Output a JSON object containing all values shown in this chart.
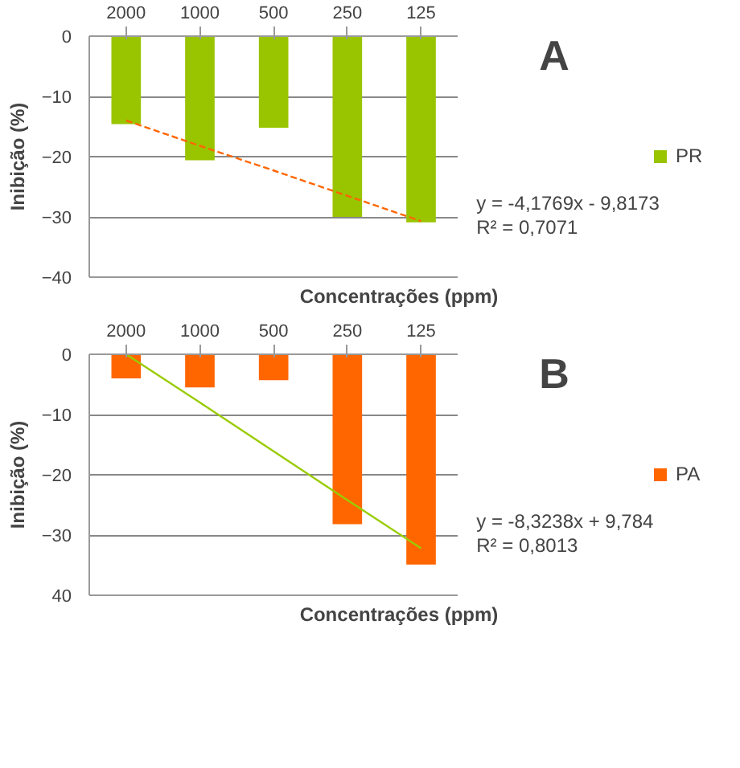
{
  "chart_data": [
    {
      "type": "bar",
      "xlabel": "Concentrações (ppm)",
      "ylabel": "Inibição (%)",
      "categories": [
        "2000",
        "1000",
        "500",
        "250",
        "125"
      ],
      "series": [
        {
          "name": "PR",
          "color": "#99c400",
          "values": [
            -14.6,
            -20.6,
            -15.2,
            -30.0,
            -30.9
          ]
        },
        {
          "type": "line",
          "color": "#ff6600",
          "line_style": "dashed",
          "values": [
            -14.0,
            -18.2,
            -22.3,
            -26.5,
            -30.7
          ]
        }
      ],
      "ylim": [
        -40,
        0
      ],
      "yticks": [
        0,
        -10,
        -20,
        -30,
        -40
      ],
      "grid": "y",
      "legend": "right",
      "annotations": [
        "A",
        "y = -4,1769x - 9,8173",
        "R² = 0,7071"
      ]
    },
    {
      "type": "bar",
      "xlabel": "Concentrações (ppm)",
      "ylabel": "Inibição (%)",
      "categories": [
        "2000",
        "1000",
        "500",
        "250",
        "125"
      ],
      "series": [
        {
          "name": "PA",
          "color": "#ff6600",
          "values": [
            -4.0,
            -5.5,
            -4.3,
            -28.2,
            -34.9
          ]
        },
        {
          "type": "line",
          "color": "#99cc00",
          "line_style": "solid",
          "values": [
            0,
            -8.0,
            -16.1,
            -24.2,
            -32.2
          ]
        }
      ],
      "ylim": [
        -40,
        0
      ],
      "yticks": [
        0,
        -10,
        -20,
        -30,
        {
          "value": -40,
          "label": "40"
        }
      ],
      "grid": "y",
      "legend": "right",
      "annotations": [
        "B",
        "y = -8,3238x + 9,784",
        "R² = 0,8013"
      ]
    }
  ]
}
